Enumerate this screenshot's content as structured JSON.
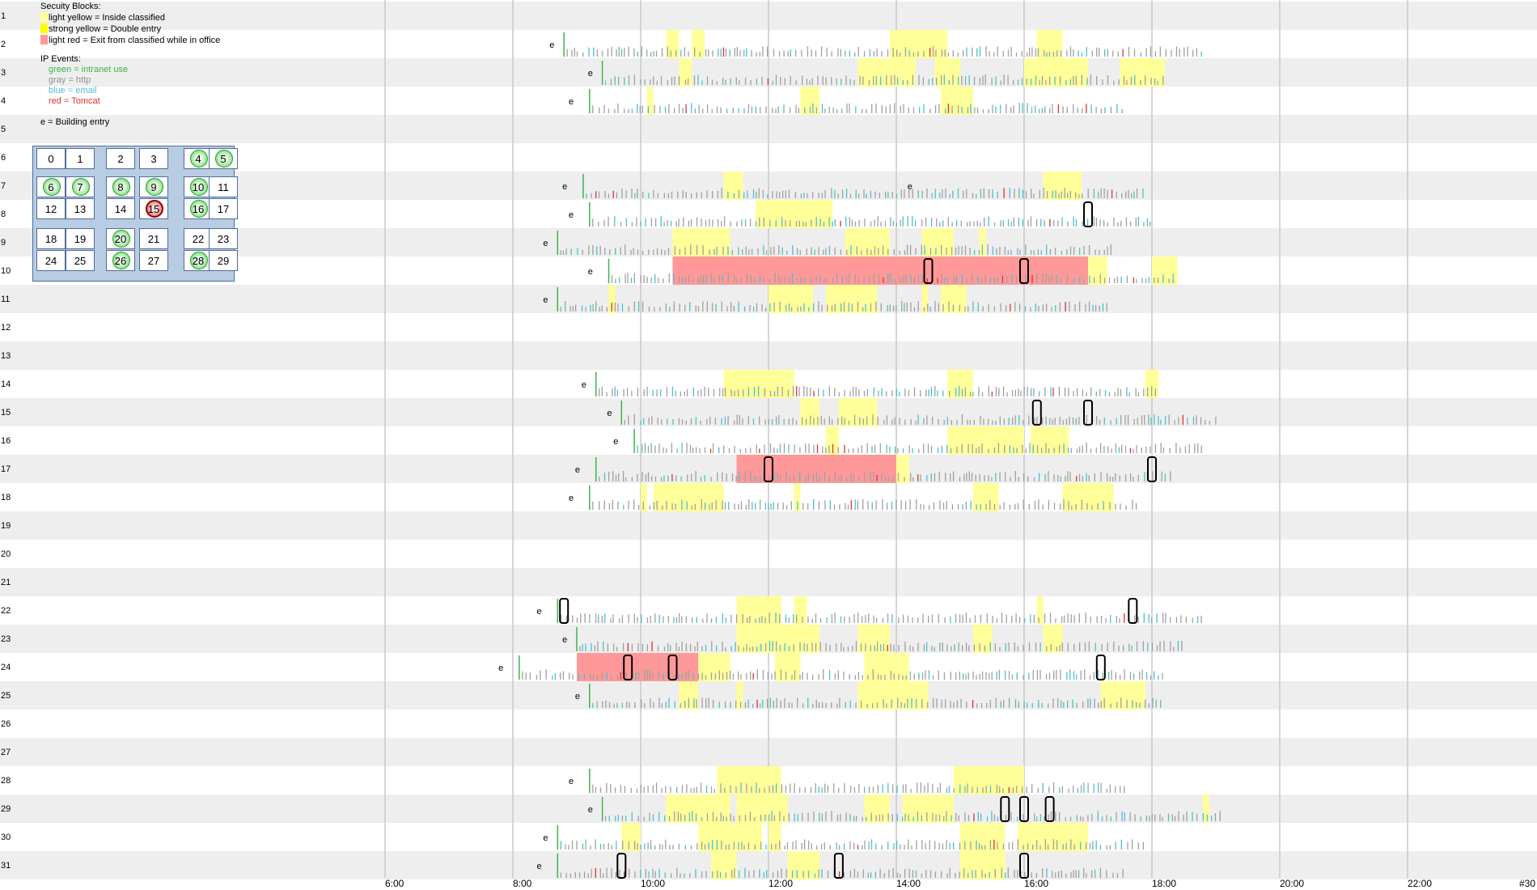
{
  "legend": {
    "security_title": "Secuity Blocks:",
    "security_items": [
      {
        "label": "light yellow = Inside classified",
        "color": "#ffff99"
      },
      {
        "label": "strong yellow = Double entry",
        "color": "#ffff00"
      },
      {
        "label": "light red = Exit from classified while in office",
        "color": "#ff9999"
      }
    ],
    "ip_title": "IP Events:",
    "ip_items": [
      {
        "label": "green = intranet use",
        "color": "#3cb44b"
      },
      {
        "label": "gray = http",
        "color": "#909090"
      },
      {
        "label": "blue = email",
        "color": "#4dbfd0"
      },
      {
        "label": "red = Tomcat",
        "color": "#e03030"
      }
    ],
    "entry_note": "e = Building entry"
  },
  "floor_grid": {
    "cells": [
      {
        "n": "0",
        "s": ""
      },
      {
        "n": "1",
        "s": ""
      },
      {
        "n": "2",
        "s": ""
      },
      {
        "n": "3",
        "s": ""
      },
      {
        "n": "4",
        "s": "green"
      },
      {
        "n": "5",
        "s": "green"
      },
      {
        "n": "6",
        "s": "green"
      },
      {
        "n": "7",
        "s": "green"
      },
      {
        "n": "8",
        "s": "green"
      },
      {
        "n": "9",
        "s": "green"
      },
      {
        "n": "10",
        "s": "green"
      },
      {
        "n": "11",
        "s": ""
      },
      {
        "n": "12",
        "s": ""
      },
      {
        "n": "13",
        "s": ""
      },
      {
        "n": "14",
        "s": ""
      },
      {
        "n": "15",
        "s": "red"
      },
      {
        "n": "16",
        "s": "green"
      },
      {
        "n": "17",
        "s": ""
      },
      {
        "n": "18",
        "s": ""
      },
      {
        "n": "19",
        "s": ""
      },
      {
        "n": "20",
        "s": "green"
      },
      {
        "n": "21",
        "s": ""
      },
      {
        "n": "22",
        "s": ""
      },
      {
        "n": "23",
        "s": ""
      },
      {
        "n": "24",
        "s": ""
      },
      {
        "n": "25",
        "s": ""
      },
      {
        "n": "26",
        "s": "green"
      },
      {
        "n": "27",
        "s": ""
      },
      {
        "n": "28",
        "s": "green"
      },
      {
        "n": "29",
        "s": ""
      }
    ]
  },
  "chart_data": {
    "type": "timeline",
    "x_ticks": [
      "6:00",
      "8:00",
      "10:00",
      "12:00",
      "14:00",
      "16:00",
      "18:00",
      "20:00",
      "22:00"
    ],
    "x_range_hours": [
      4.0,
      22.9
    ],
    "end_label": "#30",
    "rows": [
      {
        "id": "1"
      },
      {
        "id": "2",
        "entry": 8.7,
        "first": 8.8,
        "last": 18.8,
        "yellow": [
          [
            10.4,
            10.6
          ],
          [
            10.8,
            11.0
          ],
          [
            13.9,
            14.8
          ],
          [
            16.2,
            16.6
          ]
        ],
        "red": [],
        "bars": []
      },
      {
        "id": "3",
        "entry": 9.3,
        "first": 9.4,
        "last": 18.2,
        "yellow": [
          [
            10.6,
            10.8
          ],
          [
            13.4,
            14.3
          ],
          [
            14.6,
            15.0
          ],
          [
            16.0,
            17.0
          ],
          [
            17.5,
            18.2
          ]
        ],
        "red": [],
        "bars": []
      },
      {
        "id": "4",
        "entry": 9.0,
        "first": 9.2,
        "last": 17.6,
        "yellow": [
          [
            10.1,
            10.2
          ],
          [
            12.5,
            12.8
          ],
          [
            14.7,
            15.2
          ]
        ],
        "red": [],
        "bars": []
      },
      {
        "id": "5"
      },
      {
        "id": "6"
      },
      {
        "id": "7",
        "entry": 8.9,
        "entry2": 14.3,
        "first": 9.1,
        "last": 17.9,
        "yellow": [
          [
            11.3,
            11.6
          ],
          [
            16.3,
            16.9
          ]
        ],
        "red": [],
        "bars": []
      },
      {
        "id": "8",
        "entry": 9.0,
        "first": 9.2,
        "last": 18.0,
        "yellow": [
          [
            11.8,
            13.0
          ]
        ],
        "red": [],
        "bars": [
          17.0
        ]
      },
      {
        "id": "9",
        "entry": 8.6,
        "first": 8.7,
        "last": 17.4,
        "yellow": [
          [
            10.5,
            11.4
          ],
          [
            13.2,
            13.9
          ],
          [
            14.4,
            14.9
          ],
          [
            15.3,
            15.4
          ]
        ],
        "red": [],
        "bars": []
      },
      {
        "id": "10",
        "entry": 9.3,
        "first": 9.5,
        "last": 18.4,
        "yellow": [
          [
            17.0,
            17.3
          ],
          [
            18.0,
            18.4
          ]
        ],
        "red": [
          [
            10.5,
            17.0
          ]
        ],
        "bars": [
          14.5,
          16.0
        ]
      },
      {
        "id": "11",
        "entry": 8.6,
        "first": 8.7,
        "last": 17.3,
        "yellow": [
          [
            9.5,
            9.6
          ],
          [
            12.0,
            12.7
          ],
          [
            12.9,
            13.7
          ],
          [
            14.4,
            14.5
          ],
          [
            14.7,
            15.1
          ]
        ],
        "red": [],
        "bars": []
      },
      {
        "id": "12"
      },
      {
        "id": "13"
      },
      {
        "id": "14",
        "entry": 9.2,
        "first": 9.3,
        "last": 18.1,
        "yellow": [
          [
            11.3,
            12.4
          ],
          [
            14.8,
            15.2
          ],
          [
            17.9,
            18.1
          ]
        ],
        "red": [],
        "bars": []
      },
      {
        "id": "15",
        "entry": 9.6,
        "first": 9.7,
        "last": 19.0,
        "yellow": [
          [
            12.5,
            12.8
          ],
          [
            13.1,
            13.7
          ]
        ],
        "red": [],
        "bars": [
          16.2,
          17.0
        ]
      },
      {
        "id": "16",
        "entry": 9.7,
        "first": 9.9,
        "last": 18.8,
        "yellow": [
          [
            12.9,
            13.1
          ],
          [
            14.8,
            16.0
          ],
          [
            16.1,
            16.7
          ]
        ],
        "red": [],
        "bars": []
      },
      {
        "id": "17",
        "entry": 9.1,
        "first": 9.3,
        "last": 18.3,
        "yellow": [
          [
            14.0,
            14.2
          ]
        ],
        "red": [
          [
            11.5,
            14.0
          ]
        ],
        "bars": [
          12.0,
          18.0
        ]
      },
      {
        "id": "18",
        "entry": 9.0,
        "first": 9.2,
        "last": 17.8,
        "yellow": [
          [
            10.0,
            10.1
          ],
          [
            10.2,
            11.3
          ],
          [
            12.4,
            12.5
          ],
          [
            15.2,
            15.6
          ],
          [
            16.6,
            17.4
          ]
        ],
        "red": [],
        "bars": []
      },
      {
        "id": "19"
      },
      {
        "id": "20"
      },
      {
        "id": "21"
      },
      {
        "id": "22",
        "entry": 8.5,
        "first": 8.7,
        "last": 18.8,
        "yellow": [
          [
            11.5,
            12.2
          ],
          [
            12.4,
            12.6
          ],
          [
            16.2,
            16.3
          ]
        ],
        "red": [],
        "bars": [
          8.8,
          17.7
        ]
      },
      {
        "id": "23",
        "entry": 8.9,
        "first": 9.0,
        "last": 18.5,
        "yellow": [
          [
            11.5,
            12.8
          ],
          [
            13.4,
            13.9
          ],
          [
            15.2,
            15.5
          ],
          [
            16.3,
            16.6
          ]
        ],
        "red": [],
        "bars": []
      },
      {
        "id": "24",
        "entry": 7.9,
        "first": 8.1,
        "last": 18.2,
        "yellow": [
          [
            10.9,
            11.4
          ],
          [
            12.1,
            12.5
          ],
          [
            13.5,
            14.2
          ]
        ],
        "red": [
          [
            9.0,
            10.9
          ]
        ],
        "bars": [
          9.8,
          10.5,
          17.2
        ]
      },
      {
        "id": "25",
        "entry": 9.1,
        "first": 9.2,
        "last": 18.2,
        "yellow": [
          [
            10.6,
            10.9
          ],
          [
            11.5,
            11.6
          ],
          [
            13.4,
            14.5
          ],
          [
            17.2,
            17.9
          ]
        ],
        "red": [],
        "bars": []
      },
      {
        "id": "26"
      },
      {
        "id": "27"
      },
      {
        "id": "28",
        "entry": 9.0,
        "first": 9.2,
        "last": 17.6,
        "yellow": [
          [
            11.2,
            12.2
          ],
          [
            14.9,
            16.0
          ]
        ],
        "red": [],
        "bars": []
      },
      {
        "id": "29",
        "entry": 9.3,
        "first": 9.4,
        "last": 19.1,
        "yellow": [
          [
            10.4,
            11.4
          ],
          [
            11.5,
            12.3
          ],
          [
            13.5,
            13.9
          ],
          [
            14.1,
            14.9
          ],
          [
            18.8,
            18.9
          ]
        ],
        "red": [],
        "bars": [
          15.7,
          16.0,
          16.4
        ]
      },
      {
        "id": "30",
        "entry": 8.6,
        "first": 8.7,
        "last": 17.9,
        "yellow": [
          [
            9.7,
            10.0
          ],
          [
            10.9,
            11.9
          ],
          [
            12.0,
            12.2
          ],
          [
            15.0,
            15.7
          ],
          [
            15.9,
            17.0
          ]
        ],
        "red": [],
        "bars": []
      },
      {
        "id": "31",
        "entry": 8.5,
        "first": 8.7,
        "last": 17.6,
        "yellow": [
          [
            11.1,
            11.5
          ],
          [
            12.3,
            12.8
          ],
          [
            15.0,
            15.7
          ]
        ],
        "red": [],
        "bars": [
          9.7,
          13.1,
          16.0
        ]
      }
    ]
  }
}
